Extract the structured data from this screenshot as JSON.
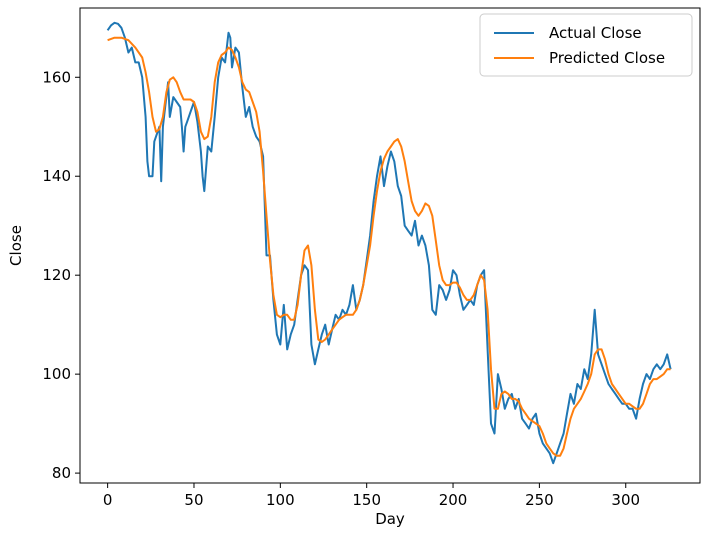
{
  "chart_data": {
    "type": "line",
    "title": "",
    "xlabel": "Day",
    "ylabel": "Close",
    "xlim": [
      -16,
      343
    ],
    "ylim": [
      78,
      174
    ],
    "x_ticks": [
      0,
      50,
      100,
      150,
      200,
      250,
      300
    ],
    "y_ticks": [
      80,
      100,
      120,
      140,
      160
    ],
    "grid": false,
    "legend_position": "top-right",
    "series": [
      {
        "name": "Actual Close",
        "color": "#1f77b4",
        "points": [
          [
            0,
            169.5
          ],
          [
            2,
            170.5
          ],
          [
            4,
            171
          ],
          [
            6,
            170.8
          ],
          [
            8,
            170
          ],
          [
            10,
            168
          ],
          [
            12,
            165
          ],
          [
            14,
            166
          ],
          [
            16,
            163
          ],
          [
            18,
            163
          ],
          [
            20,
            160
          ],
          [
            22,
            152
          ],
          [
            23,
            143
          ],
          [
            24,
            140
          ],
          [
            26,
            140
          ],
          [
            27,
            147
          ],
          [
            28,
            148
          ],
          [
            30,
            150
          ],
          [
            31,
            139
          ],
          [
            32,
            150
          ],
          [
            33,
            153
          ],
          [
            35,
            159
          ],
          [
            36,
            152
          ],
          [
            38,
            156
          ],
          [
            40,
            155
          ],
          [
            42,
            154
          ],
          [
            43,
            150
          ],
          [
            44,
            145
          ],
          [
            45,
            150
          ],
          [
            46,
            151
          ],
          [
            48,
            153
          ],
          [
            50,
            155
          ],
          [
            52,
            151
          ],
          [
            54,
            145
          ],
          [
            55,
            140
          ],
          [
            56,
            137
          ],
          [
            58,
            146
          ],
          [
            60,
            145
          ],
          [
            62,
            152
          ],
          [
            64,
            160
          ],
          [
            66,
            164
          ],
          [
            68,
            163
          ],
          [
            70,
            169
          ],
          [
            71,
            168
          ],
          [
            72,
            162
          ],
          [
            74,
            166
          ],
          [
            76,
            165
          ],
          [
            78,
            158
          ],
          [
            80,
            152
          ],
          [
            82,
            154
          ],
          [
            84,
            150
          ],
          [
            86,
            148
          ],
          [
            88,
            147
          ],
          [
            90,
            144
          ],
          [
            92,
            124
          ],
          [
            94,
            124
          ],
          [
            96,
            115
          ],
          [
            98,
            108
          ],
          [
            100,
            106
          ],
          [
            102,
            114
          ],
          [
            104,
            105
          ],
          [
            106,
            108
          ],
          [
            108,
            110
          ],
          [
            110,
            115
          ],
          [
            112,
            120
          ],
          [
            114,
            122
          ],
          [
            116,
            121
          ],
          [
            118,
            106
          ],
          [
            120,
            102
          ],
          [
            122,
            105
          ],
          [
            124,
            108
          ],
          [
            126,
            110
          ],
          [
            128,
            106
          ],
          [
            130,
            109
          ],
          [
            132,
            112
          ],
          [
            134,
            111
          ],
          [
            136,
            113
          ],
          [
            138,
            112
          ],
          [
            140,
            114
          ],
          [
            142,
            118
          ],
          [
            144,
            113
          ],
          [
            146,
            115
          ],
          [
            148,
            118
          ],
          [
            150,
            123
          ],
          [
            152,
            128
          ],
          [
            154,
            135
          ],
          [
            156,
            140
          ],
          [
            158,
            144
          ],
          [
            160,
            138
          ],
          [
            162,
            142
          ],
          [
            164,
            145
          ],
          [
            166,
            143
          ],
          [
            168,
            138
          ],
          [
            170,
            136
          ],
          [
            172,
            130
          ],
          [
            174,
            129
          ],
          [
            176,
            128
          ],
          [
            178,
            131
          ],
          [
            180,
            126
          ],
          [
            182,
            128
          ],
          [
            184,
            126
          ],
          [
            186,
            122
          ],
          [
            188,
            113
          ],
          [
            190,
            112
          ],
          [
            192,
            118
          ],
          [
            194,
            117
          ],
          [
            196,
            115
          ],
          [
            198,
            117
          ],
          [
            200,
            121
          ],
          [
            202,
            120
          ],
          [
            204,
            116
          ],
          [
            206,
            113
          ],
          [
            208,
            114
          ],
          [
            210,
            115
          ],
          [
            212,
            114
          ],
          [
            214,
            118
          ],
          [
            216,
            120
          ],
          [
            218,
            121
          ],
          [
            220,
            105
          ],
          [
            222,
            90
          ],
          [
            224,
            88
          ],
          [
            226,
            100
          ],
          [
            228,
            97
          ],
          [
            230,
            93
          ],
          [
            232,
            95
          ],
          [
            234,
            96
          ],
          [
            236,
            93
          ],
          [
            238,
            95
          ],
          [
            240,
            91
          ],
          [
            242,
            90
          ],
          [
            244,
            89
          ],
          [
            246,
            91
          ],
          [
            248,
            92
          ],
          [
            250,
            88
          ],
          [
            252,
            86
          ],
          [
            254,
            85
          ],
          [
            256,
            84
          ],
          [
            258,
            82
          ],
          [
            260,
            84
          ],
          [
            262,
            86
          ],
          [
            264,
            88
          ],
          [
            266,
            92
          ],
          [
            268,
            96
          ],
          [
            270,
            94
          ],
          [
            272,
            98
          ],
          [
            274,
            97
          ],
          [
            276,
            101
          ],
          [
            278,
            99
          ],
          [
            280,
            104
          ],
          [
            282,
            113
          ],
          [
            284,
            104
          ],
          [
            286,
            102
          ],
          [
            288,
            100
          ],
          [
            290,
            98
          ],
          [
            292,
            97
          ],
          [
            294,
            96
          ],
          [
            296,
            95
          ],
          [
            298,
            94
          ],
          [
            300,
            94
          ],
          [
            302,
            93
          ],
          [
            304,
            93
          ],
          [
            306,
            91
          ],
          [
            308,
            95
          ],
          [
            310,
            98
          ],
          [
            312,
            100
          ],
          [
            314,
            99
          ],
          [
            316,
            101
          ],
          [
            318,
            102
          ],
          [
            320,
            101
          ],
          [
            322,
            102
          ],
          [
            324,
            104
          ],
          [
            326,
            101
          ]
        ]
      },
      {
        "name": "Predicted Close",
        "color": "#ff7f0e",
        "points": [
          [
            0,
            167.5
          ],
          [
            4,
            168
          ],
          [
            8,
            168
          ],
          [
            12,
            167.5
          ],
          [
            16,
            166
          ],
          [
            20,
            164
          ],
          [
            22,
            161
          ],
          [
            24,
            157
          ],
          [
            26,
            152
          ],
          [
            28,
            149
          ],
          [
            30,
            149.5
          ],
          [
            32,
            152
          ],
          [
            34,
            157
          ],
          [
            36,
            159.5
          ],
          [
            38,
            160
          ],
          [
            40,
            159
          ],
          [
            42,
            157
          ],
          [
            44,
            155.5
          ],
          [
            46,
            155.5
          ],
          [
            48,
            155.5
          ],
          [
            50,
            155
          ],
          [
            52,
            153
          ],
          [
            54,
            149
          ],
          [
            56,
            147.5
          ],
          [
            58,
            148
          ],
          [
            60,
            152
          ],
          [
            62,
            159
          ],
          [
            64,
            163
          ],
          [
            66,
            164.5
          ],
          [
            68,
            165
          ],
          [
            70,
            166
          ],
          [
            72,
            165.5
          ],
          [
            74,
            164
          ],
          [
            76,
            162
          ],
          [
            78,
            159
          ],
          [
            80,
            157.5
          ],
          [
            82,
            157
          ],
          [
            84,
            155
          ],
          [
            86,
            153
          ],
          [
            88,
            149
          ],
          [
            90,
            141
          ],
          [
            92,
            132
          ],
          [
            94,
            123
          ],
          [
            96,
            116
          ],
          [
            98,
            112
          ],
          [
            100,
            111.5
          ],
          [
            102,
            112
          ],
          [
            104,
            112
          ],
          [
            106,
            111
          ],
          [
            108,
            111
          ],
          [
            110,
            114
          ],
          [
            112,
            120
          ],
          [
            114,
            125
          ],
          [
            116,
            126
          ],
          [
            118,
            122
          ],
          [
            120,
            113
          ],
          [
            122,
            107
          ],
          [
            124,
            106.5
          ],
          [
            126,
            107
          ],
          [
            128,
            108
          ],
          [
            130,
            109
          ],
          [
            132,
            110
          ],
          [
            134,
            111
          ],
          [
            136,
            111.5
          ],
          [
            138,
            112
          ],
          [
            140,
            112
          ],
          [
            142,
            112
          ],
          [
            144,
            113
          ],
          [
            146,
            115
          ],
          [
            148,
            118
          ],
          [
            150,
            122
          ],
          [
            152,
            126
          ],
          [
            154,
            132
          ],
          [
            156,
            137
          ],
          [
            158,
            141
          ],
          [
            160,
            143.5
          ],
          [
            162,
            145
          ],
          [
            164,
            146
          ],
          [
            166,
            147
          ],
          [
            168,
            147.5
          ],
          [
            170,
            146
          ],
          [
            172,
            143
          ],
          [
            174,
            139
          ],
          [
            176,
            135
          ],
          [
            178,
            133
          ],
          [
            180,
            132
          ],
          [
            182,
            133
          ],
          [
            184,
            134.5
          ],
          [
            186,
            134
          ],
          [
            188,
            132
          ],
          [
            190,
            127
          ],
          [
            192,
            122
          ],
          [
            194,
            119
          ],
          [
            196,
            118
          ],
          [
            198,
            118
          ],
          [
            200,
            118.5
          ],
          [
            202,
            118.5
          ],
          [
            204,
            117.5
          ],
          [
            206,
            116
          ],
          [
            208,
            115
          ],
          [
            210,
            115
          ],
          [
            212,
            116
          ],
          [
            214,
            118
          ],
          [
            216,
            120
          ],
          [
            218,
            119
          ],
          [
            220,
            113
          ],
          [
            222,
            101
          ],
          [
            224,
            93
          ],
          [
            226,
            93
          ],
          [
            228,
            96
          ],
          [
            230,
            96.5
          ],
          [
            232,
            96
          ],
          [
            234,
            95
          ],
          [
            236,
            95
          ],
          [
            238,
            94.5
          ],
          [
            240,
            93
          ],
          [
            242,
            92
          ],
          [
            244,
            91
          ],
          [
            246,
            90.5
          ],
          [
            248,
            90
          ],
          [
            250,
            89.5
          ],
          [
            252,
            88
          ],
          [
            254,
            86
          ],
          [
            256,
            85
          ],
          [
            258,
            84
          ],
          [
            260,
            83.5
          ],
          [
            262,
            83.5
          ],
          [
            264,
            85
          ],
          [
            266,
            88
          ],
          [
            268,
            91
          ],
          [
            270,
            93
          ],
          [
            272,
            94
          ],
          [
            274,
            95
          ],
          [
            276,
            96.5
          ],
          [
            278,
            98
          ],
          [
            280,
            100
          ],
          [
            282,
            104
          ],
          [
            284,
            105
          ],
          [
            286,
            105
          ],
          [
            288,
            103
          ],
          [
            290,
            100
          ],
          [
            292,
            98
          ],
          [
            294,
            97
          ],
          [
            296,
            96
          ],
          [
            298,
            95
          ],
          [
            300,
            94
          ],
          [
            302,
            94
          ],
          [
            304,
            93.5
          ],
          [
            306,
            93
          ],
          [
            308,
            93
          ],
          [
            310,
            94
          ],
          [
            312,
            96
          ],
          [
            314,
            98
          ],
          [
            316,
            99
          ],
          [
            318,
            99
          ],
          [
            320,
            99.5
          ],
          [
            322,
            100
          ],
          [
            324,
            101
          ],
          [
            326,
            101
          ]
        ]
      }
    ]
  }
}
